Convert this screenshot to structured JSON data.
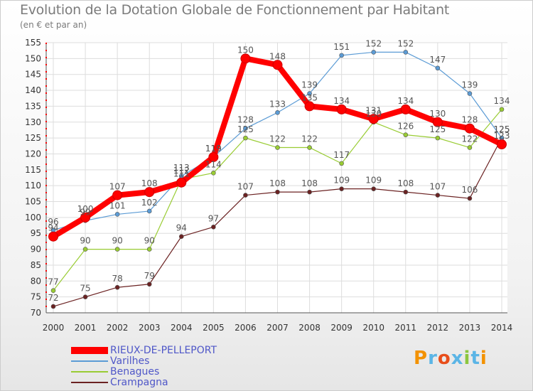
{
  "title": "Evolution de la Dotation Globale de Fonctionnement par Habitant",
  "subtitle": "(en € et par an)",
  "brand": "Proxiti",
  "chart_data": {
    "type": "line",
    "title": "Evolution de la Dotation Globale de Fonctionnement par Habitant",
    "subtitle": "(en € et par an)",
    "xlabel": "",
    "ylabel": "",
    "categories": [
      "2000",
      "2001",
      "2002",
      "2003",
      "2004",
      "2005",
      "2006",
      "2007",
      "2008",
      "2009",
      "2010",
      "2011",
      "2012",
      "2013",
      "2014"
    ],
    "ylim": [
      70,
      155
    ],
    "yticks": [
      70,
      75,
      80,
      85,
      90,
      95,
      100,
      105,
      110,
      115,
      120,
      125,
      130,
      135,
      140,
      145,
      150,
      155
    ],
    "grid": true,
    "legend_position": "bottom-left",
    "series": [
      {
        "name": "RIEUX-DE-PELLEPORT",
        "color": "#ff0000",
        "values": [
          94,
          100,
          107,
          108,
          111,
          119,
          150,
          148,
          135,
          134,
          131,
          134,
          130,
          128,
          123
        ]
      },
      {
        "name": "Varilhes",
        "color": "#5b9bd5",
        "values": [
          96,
          99,
          101,
          102,
          113,
          119,
          128,
          133,
          139,
          151,
          152,
          152,
          147,
          139,
          125
        ]
      },
      {
        "name": "Benagues",
        "color": "#99cc33",
        "values": [
          77,
          90,
          90,
          90,
          112,
          114,
          125,
          122,
          122,
          117,
          130,
          126,
          125,
          122,
          134
        ]
      },
      {
        "name": "Crampagna",
        "color": "#6b2222",
        "values": [
          72,
          75,
          78,
          79,
          94,
          97,
          107,
          108,
          108,
          109,
          109,
          108,
          107,
          106,
          125
        ]
      }
    ]
  }
}
